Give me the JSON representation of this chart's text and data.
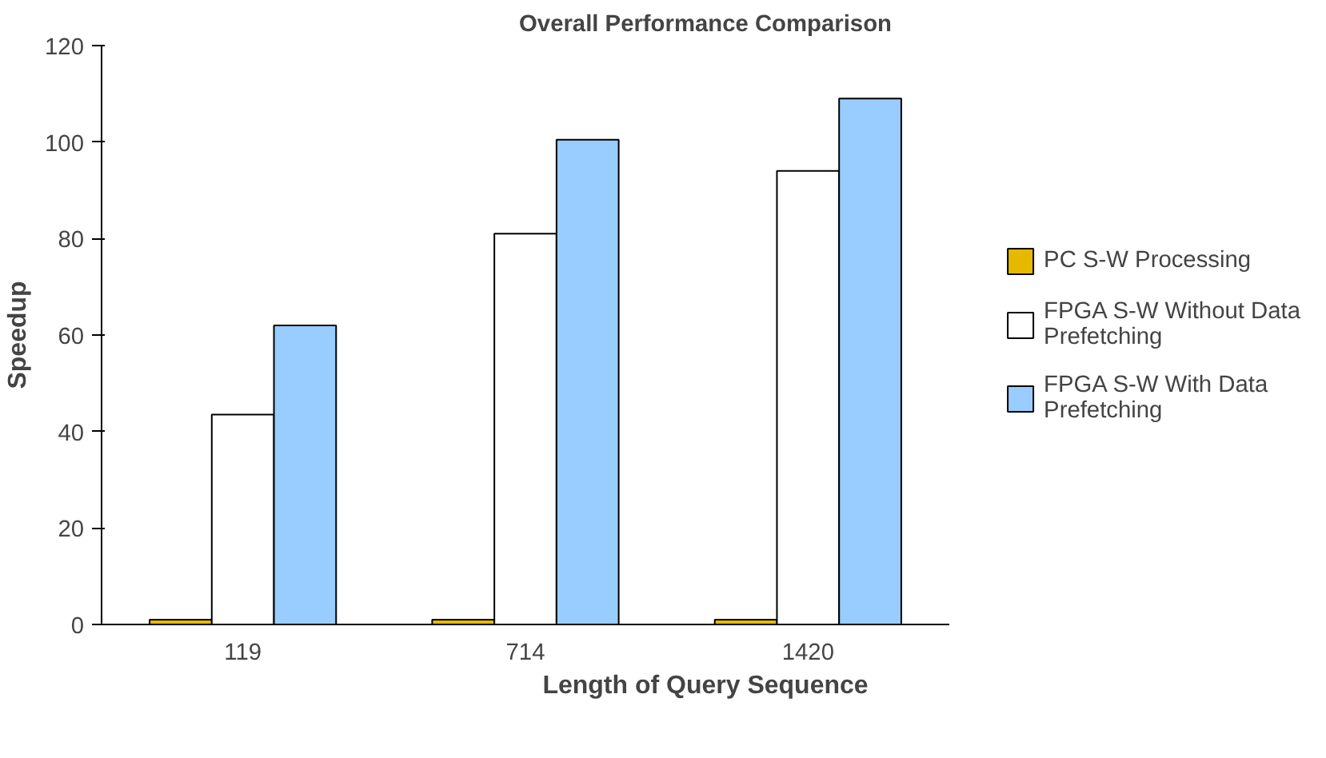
{
  "chart_data": {
    "type": "bar",
    "title": "Overall Performance Comparison",
    "xlabel": "Length of Query Sequence",
    "ylabel": "Speedup",
    "categories": [
      "119",
      "714",
      "1420"
    ],
    "series": [
      {
        "name": "PC S-W Processing",
        "color": "#e6b800",
        "values": [
          1,
          1,
          1
        ]
      },
      {
        "name": "FPGA S-W Without Data Prefetching",
        "color": "#ffffff",
        "values": [
          43.5,
          81,
          94
        ]
      },
      {
        "name": "FPGA S-W With Data Prefetching",
        "color": "#99ccff",
        "values": [
          62,
          100.5,
          109
        ]
      }
    ],
    "ylim": [
      0,
      120
    ],
    "yticks": [
      0,
      20,
      40,
      60,
      80,
      100,
      120
    ],
    "grid": false,
    "legend": "right"
  }
}
